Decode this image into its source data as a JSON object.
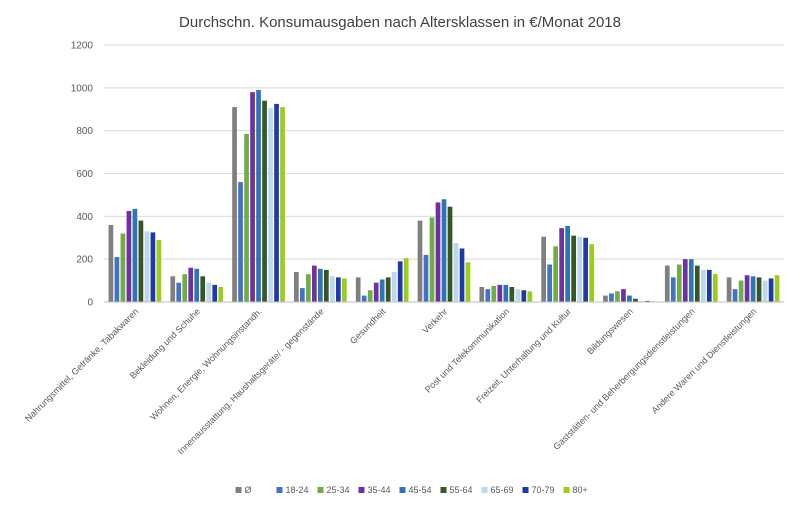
{
  "chart_data": {
    "type": "bar",
    "title": "Durchschn. Konsumausgaben nach Altersklassen in €/Monat 2018",
    "xlabel": "",
    "ylabel": "",
    "ylim": [
      0,
      1200
    ],
    "yticks": [
      0,
      200,
      400,
      600,
      800,
      1000,
      1200
    ],
    "grid": true,
    "legend_position": "bottom",
    "categories": [
      "Nahrungsmittel, Getränke, Tabakwaren",
      "Bekleidung und Schuhe",
      "Wohnen, Energie, Wohnungsinstandh.",
      "Innenausstattung, Haushaltsgeräte/ - gegenstände",
      "Gesundheit",
      "Verkehr",
      "Post und Telekommunikation",
      "Freizeit, Unterhaltung und Kultur",
      "Bildungswesen",
      "Gaststätten- und Beherbergungsdienstleistungen",
      "Andere Waren und Dienstleistungen"
    ],
    "series": [
      {
        "name": "Ø",
        "color": "#7f7f7f",
        "values": [
          360,
          120,
          910,
          140,
          115,
          380,
          70,
          305,
          30,
          170,
          115
        ]
      },
      {
        "name": "18-24",
        "color": "#4472c4",
        "values": [
          210,
          90,
          560,
          65,
          30,
          220,
          60,
          175,
          40,
          115,
          60
        ]
      },
      {
        "name": "25-34",
        "color": "#70ad47",
        "values": [
          320,
          130,
          785,
          130,
          55,
          395,
          75,
          260,
          50,
          175,
          100
        ]
      },
      {
        "name": "35-44",
        "color": "#7030a0",
        "values": [
          425,
          160,
          980,
          170,
          90,
          465,
          80,
          345,
          60,
          200,
          125
        ]
      },
      {
        "name": "45-54",
        "color": "#2e75b6",
        "values": [
          435,
          155,
          990,
          155,
          105,
          480,
          80,
          355,
          30,
          200,
          120
        ]
      },
      {
        "name": "55-64",
        "color": "#375623",
        "values": [
          380,
          120,
          940,
          150,
          115,
          445,
          70,
          310,
          15,
          170,
          115
        ]
      },
      {
        "name": "65-69",
        "color": "#bdd7ee",
        "values": [
          330,
          90,
          905,
          120,
          140,
          275,
          60,
          305,
          5,
          150,
          100
        ]
      },
      {
        "name": "70-79",
        "color": "#1f3aa8",
        "values": [
          325,
          80,
          925,
          115,
          190,
          250,
          55,
          300,
          5,
          150,
          110
        ]
      },
      {
        "name": "80+",
        "color": "#9ccc1c",
        "values": [
          290,
          70,
          910,
          110,
          205,
          185,
          50,
          270,
          3,
          130,
          125
        ]
      }
    ]
  }
}
